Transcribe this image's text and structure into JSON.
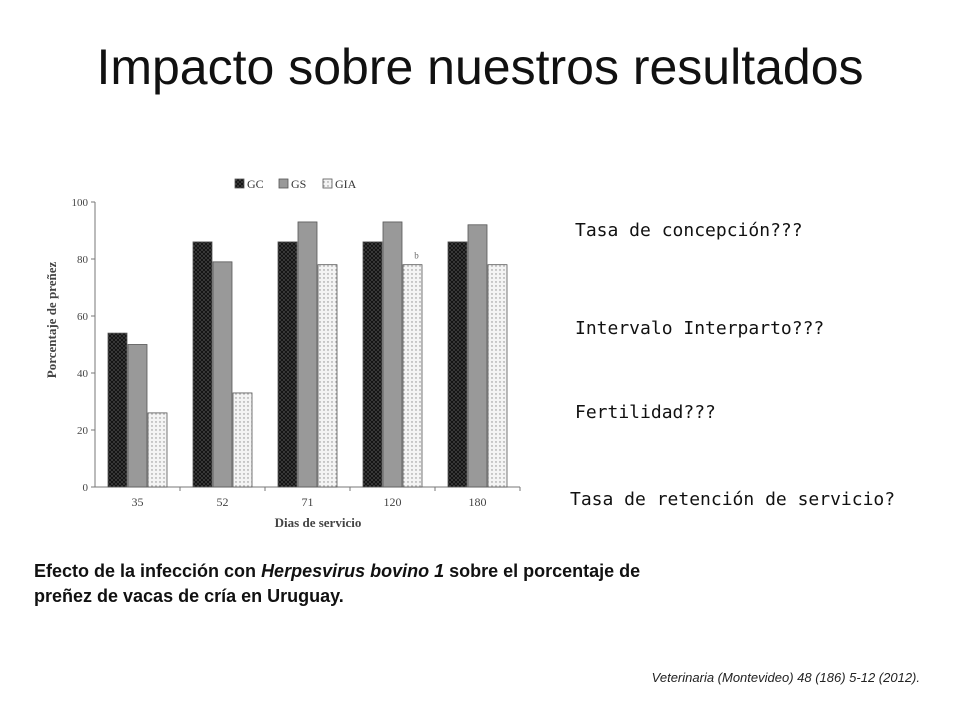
{
  "title": "Impacto sobre nuestros resultados",
  "questions": [
    "Tasa de concepción???",
    "Intervalo Interparto???",
    "Fertilidad???",
    "Tasa de retención de servicio?"
  ],
  "caption": {
    "part1": "Efecto de la infección con ",
    "italic": "Herpesvirus bovino 1",
    "part2": " sobre el porcentaje de preñez de vacas de cría en Uruguay."
  },
  "reference": "Veterinaria (Montevideo) 48 (186) 5-12 (2012).",
  "chart_data": {
    "type": "bar",
    "xlabel": "Dias de servicio",
    "ylabel": "Porcentaje de preñez",
    "ylim": [
      0,
      100
    ],
    "yticks": [
      0,
      20,
      40,
      60,
      80,
      100
    ],
    "categories": [
      "35",
      "52",
      "71",
      "120",
      "180"
    ],
    "legend_position": "top",
    "series": [
      {
        "name": "GC",
        "values": [
          54,
          86,
          86,
          86,
          86
        ],
        "color": "#333333",
        "pattern": "crosshatch"
      },
      {
        "name": "GS",
        "values": [
          50,
          79,
          93,
          93,
          92
        ],
        "color": "#999999",
        "pattern": "solid"
      },
      {
        "name": "GIA",
        "values": [
          26,
          33,
          78,
          78,
          78
        ],
        "color": "#f2f2f2",
        "pattern": "dotted"
      }
    ],
    "annotations": [
      {
        "text": "b",
        "category": "120",
        "series": "GIA"
      }
    ]
  }
}
